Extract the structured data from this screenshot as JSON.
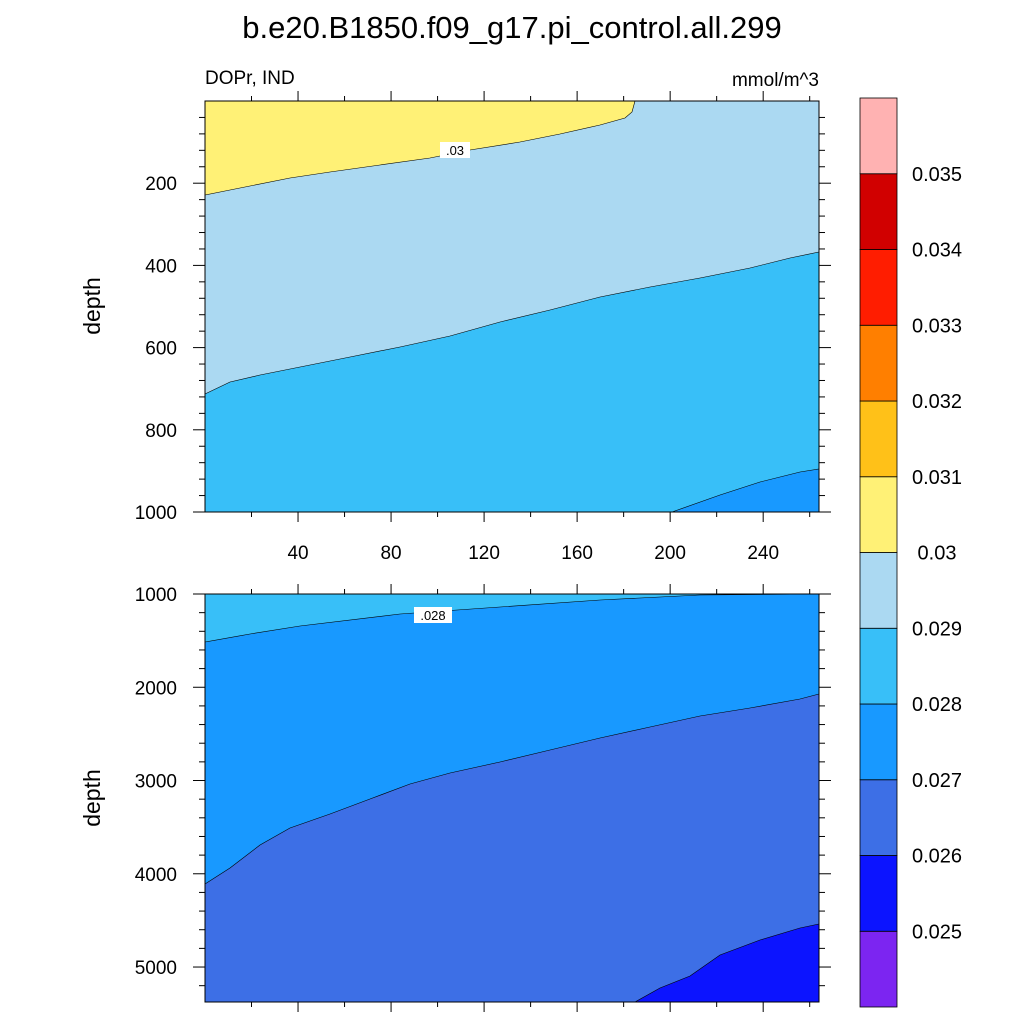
{
  "chart_data": {
    "type": "filled-contour",
    "title": "b.e20.B1850.f09_g17.pi_control.all.299",
    "variable": "DOPr, IND",
    "units": "mmol/m^3",
    "x_ticks": [
      "40",
      "80",
      "120",
      "160",
      "200",
      "240"
    ],
    "x_range": [
      0,
      264
    ],
    "panels": [
      {
        "name": "upper",
        "ylabel": "depth",
        "y_range": [
          0,
          1000
        ],
        "y_ticks": [
          "200",
          "400",
          "600",
          "800",
          "1000"
        ],
        "contour_label": ".03",
        "regions": [
          {
            "level": "0.030-0.031",
            "color": "#fff176"
          },
          {
            "level": "0.029-0.030",
            "color": "#abd9f2"
          },
          {
            "level": "0.028-0.029",
            "color": "#38bff8"
          },
          {
            "level": "0.027-0.028",
            "color": "#1899ff"
          }
        ]
      },
      {
        "name": "lower",
        "ylabel": "depth",
        "y_range": [
          1000,
          5375
        ],
        "y_ticks": [
          "1000",
          "2000",
          "3000",
          "4000",
          "5000"
        ],
        "contour_label": ".028",
        "regions": [
          {
            "level": "0.028-0.029",
            "color": "#38bff8"
          },
          {
            "level": "0.027-0.028",
            "color": "#1899ff"
          },
          {
            "level": "0.026-0.027",
            "color": "#3d6fe6"
          },
          {
            "level": "0.025-0.026",
            "color": "#0c14ff"
          }
        ]
      }
    ],
    "colorbar": {
      "colors": [
        "#7c25f1",
        "#0c14ff",
        "#3d6fe6",
        "#1899ff",
        "#38bff8",
        "#abd9f2",
        "#fff176",
        "#ffc118",
        "#ff7f00",
        "#ff1d00",
        "#d10000",
        "#ffb2b2"
      ],
      "labels": [
        "0.025",
        "0.026",
        "0.027",
        "0.028",
        "0.029",
        "0.03",
        "0.031",
        "0.032",
        "0.033",
        "0.034",
        "0.035"
      ]
    }
  }
}
